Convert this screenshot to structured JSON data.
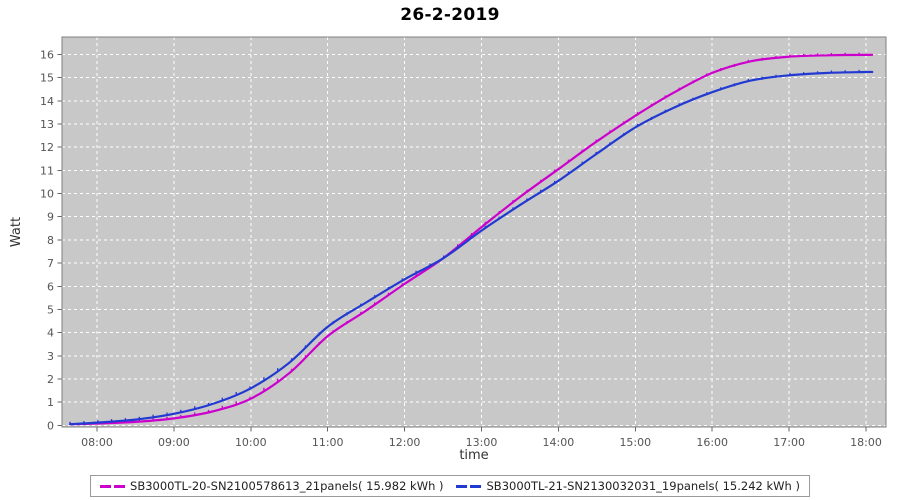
{
  "title": "26-2-2019",
  "colors": {
    "series_magenta": "#cc00cc",
    "series_blue": "#2239d2",
    "plot_bg": "#c8c8c8",
    "grid": "#ffffff",
    "plot_border": "#7f7f7f",
    "tick_mark": "#666666",
    "tick_label": "#555555",
    "axis_label": "#333333",
    "title_color": "#000000",
    "legend_border": "#9a9a9a"
  },
  "chart_data": {
    "type": "line",
    "title": "26-2-2019",
    "xlabel": "time",
    "ylabel": "Watt",
    "x_unit": "hour_of_day",
    "xlim": [
      7.545,
      18.26
    ],
    "ylim": [
      -0.07,
      16.75
    ],
    "x_tick_hours": [
      8,
      9,
      10,
      11,
      12,
      13,
      14,
      15,
      16,
      17,
      18
    ],
    "x_ticks": [
      "08:00",
      "09:00",
      "10:00",
      "11:00",
      "12:00",
      "13:00",
      "14:00",
      "15:00",
      "16:00",
      "17:00",
      "18:00"
    ],
    "y_ticks": [
      0,
      1,
      2,
      3,
      4,
      5,
      6,
      7,
      8,
      9,
      10,
      11,
      12,
      13,
      14,
      15,
      16
    ],
    "grid": "white dashed gridlines on gray plot background",
    "legend_position": "bottom",
    "x": [
      7.65,
      8.0,
      8.5,
      9.0,
      9.5,
      10.0,
      10.5,
      11.0,
      11.5,
      12.0,
      12.5,
      13.0,
      13.5,
      14.0,
      14.5,
      15.0,
      15.5,
      16.0,
      16.5,
      17.0,
      17.5,
      18.0,
      18.08
    ],
    "series": [
      {
        "name": "SB3000TL-20-SN2100578613_21panels( 15.982 kWh )",
        "color": "#cc00cc",
        "total_kwh": 15.982,
        "values": [
          0.05,
          0.08,
          0.15,
          0.3,
          0.6,
          1.15,
          2.25,
          3.85,
          4.95,
          6.1,
          7.2,
          8.55,
          9.85,
          11.05,
          12.25,
          13.35,
          14.35,
          15.2,
          15.7,
          15.9,
          15.96,
          15.98,
          15.982
        ]
      },
      {
        "name": "SB3000TL-21-SN2130032031_19panels( 15.242 kWh )",
        "color": "#2239d2",
        "total_kwh": 15.242,
        "values": [
          0.05,
          0.12,
          0.25,
          0.5,
          0.92,
          1.6,
          2.7,
          4.25,
          5.3,
          6.3,
          7.2,
          8.4,
          9.5,
          10.55,
          11.72,
          12.85,
          13.7,
          14.37,
          14.87,
          15.1,
          15.2,
          15.24,
          15.242
        ]
      }
    ]
  }
}
